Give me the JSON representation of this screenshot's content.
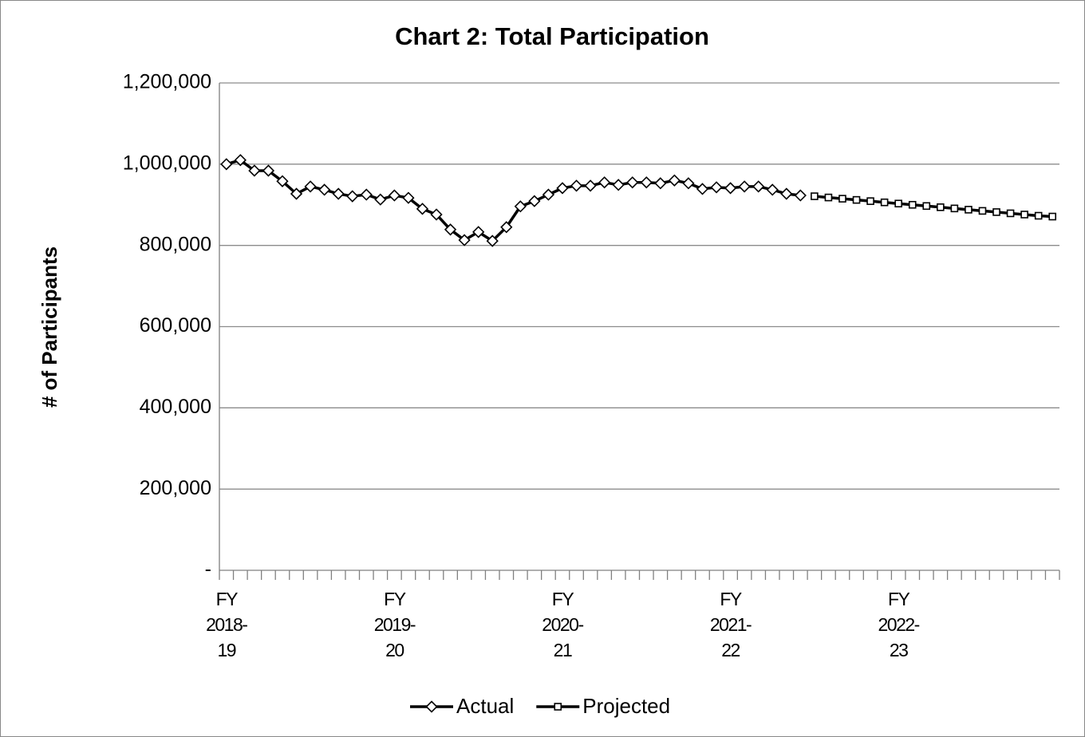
{
  "chart_data": {
    "type": "line",
    "title": "Chart 2: Total Participation",
    "y_label": "# of Participants",
    "categories": [
      "FY\n2018-\n19",
      null,
      null,
      null,
      null,
      null,
      null,
      null,
      null,
      null,
      null,
      null,
      "FY\n2019-\n20",
      null,
      null,
      null,
      null,
      null,
      null,
      null,
      null,
      null,
      null,
      null,
      "FY\n2020-\n21",
      null,
      null,
      null,
      null,
      null,
      null,
      null,
      null,
      null,
      null,
      null,
      "FY\n2021-\n22",
      null,
      null,
      null,
      null,
      null,
      null,
      null,
      null,
      null,
      null,
      null,
      "FY\n2022-\n23",
      null,
      null,
      null,
      null,
      null,
      null,
      null,
      null,
      null,
      null,
      null
    ],
    "series": [
      {
        "name": "Actual",
        "color": "#000000",
        "marker": "diamond",
        "values": [
          1000000,
          1010000,
          984000,
          984000,
          958000,
          927000,
          945000,
          937000,
          927000,
          921000,
          925000,
          913000,
          923000,
          917000,
          890000,
          876000,
          839000,
          813000,
          833000,
          811000,
          845000,
          896000,
          909000,
          925000,
          941000,
          947000,
          947000,
          955000,
          949000,
          955000,
          955000,
          953000,
          960000,
          953000,
          939000,
          943000,
          941000,
          945000,
          945000,
          937000,
          927000,
          923000,
          null,
          null,
          null,
          null,
          null,
          null,
          null,
          null,
          null,
          null,
          null,
          null,
          null,
          null,
          null,
          null,
          null,
          null
        ]
      },
      {
        "name": "Projected",
        "color": "#000000",
        "marker": "square",
        "values": [
          null,
          null,
          null,
          null,
          null,
          null,
          null,
          null,
          null,
          null,
          null,
          null,
          null,
          null,
          null,
          null,
          null,
          null,
          null,
          null,
          null,
          null,
          null,
          null,
          null,
          null,
          null,
          null,
          null,
          null,
          null,
          null,
          null,
          null,
          null,
          null,
          null,
          null,
          null,
          null,
          null,
          null,
          921000,
          918000,
          915000,
          912000,
          909000,
          906000,
          903000,
          900000,
          897000,
          894000,
          891000,
          888000,
          885000,
          882000,
          879000,
          876000,
          873000,
          871000
        ]
      }
    ],
    "ylim": [
      0,
      1200000
    ],
    "yticks": [
      {
        "value": 0,
        "label": "-"
      },
      {
        "value": 200000,
        "label": "200,000"
      },
      {
        "value": 400000,
        "label": "400,000"
      },
      {
        "value": 600000,
        "label": "600,000"
      },
      {
        "value": 800000,
        "label": "800,000"
      },
      {
        "value": 1000000,
        "label": "1,000,000"
      },
      {
        "value": 1200000,
        "label": "1,200,000"
      }
    ],
    "grid": true,
    "legend": "bottom"
  }
}
